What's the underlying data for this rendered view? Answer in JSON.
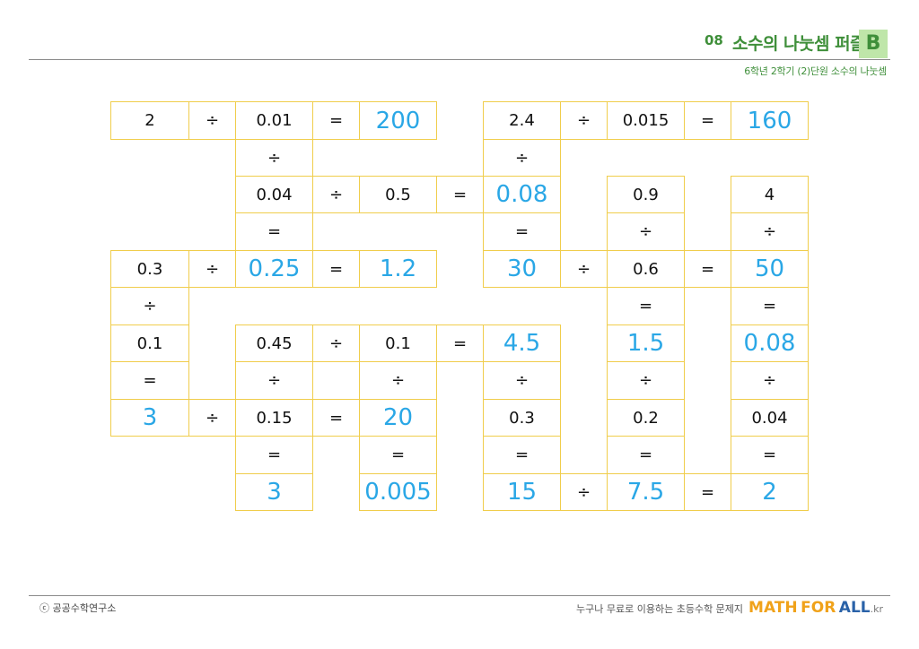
{
  "header": {
    "number": "08",
    "title": "소수의 나눗셈 퍼즐",
    "badge": "B",
    "subtitle": "6학년 2학기 (2)단원 소수의 나눗셈"
  },
  "puzzle": {
    "rows": [
      [
        {
          "t": "g",
          "v": "2"
        },
        {
          "t": "o",
          "v": "÷"
        },
        {
          "t": "g",
          "v": "0.01"
        },
        {
          "t": "o",
          "v": "="
        },
        {
          "t": "a",
          "v": "200"
        },
        null,
        {
          "t": "g",
          "v": "2.4"
        },
        {
          "t": "o",
          "v": "÷"
        },
        {
          "t": "g",
          "v": "0.015"
        },
        {
          "t": "o",
          "v": "="
        },
        {
          "t": "a",
          "v": "160"
        }
      ],
      [
        null,
        null,
        {
          "t": "o",
          "v": "÷"
        },
        null,
        null,
        null,
        {
          "t": "o",
          "v": "÷"
        },
        null,
        null,
        null,
        null
      ],
      [
        null,
        null,
        {
          "t": "g",
          "v": "0.04"
        },
        {
          "t": "o",
          "v": "÷"
        },
        {
          "t": "g",
          "v": "0.5"
        },
        {
          "t": "o",
          "v": "="
        },
        {
          "t": "a",
          "v": "0.08"
        },
        null,
        {
          "t": "g",
          "v": "0.9"
        },
        null,
        {
          "t": "g",
          "v": "4"
        }
      ],
      [
        null,
        null,
        {
          "t": "o",
          "v": "="
        },
        null,
        null,
        null,
        {
          "t": "o",
          "v": "="
        },
        null,
        {
          "t": "o",
          "v": "÷"
        },
        null,
        {
          "t": "o",
          "v": "÷"
        }
      ],
      [
        {
          "t": "g",
          "v": "0.3"
        },
        {
          "t": "o",
          "v": "÷"
        },
        {
          "t": "a",
          "v": "0.25"
        },
        {
          "t": "o",
          "v": "="
        },
        {
          "t": "a",
          "v": "1.2"
        },
        null,
        {
          "t": "a",
          "v": "30"
        },
        {
          "t": "o",
          "v": "÷"
        },
        {
          "t": "g",
          "v": "0.6"
        },
        {
          "t": "o",
          "v": "="
        },
        {
          "t": "a",
          "v": "50"
        }
      ],
      [
        {
          "t": "o",
          "v": "÷"
        },
        null,
        null,
        null,
        null,
        null,
        null,
        null,
        {
          "t": "o",
          "v": "="
        },
        null,
        {
          "t": "o",
          "v": "="
        }
      ],
      [
        {
          "t": "g",
          "v": "0.1"
        },
        null,
        {
          "t": "g",
          "v": "0.45"
        },
        {
          "t": "o",
          "v": "÷"
        },
        {
          "t": "g",
          "v": "0.1"
        },
        {
          "t": "o",
          "v": "="
        },
        {
          "t": "a",
          "v": "4.5"
        },
        null,
        {
          "t": "a",
          "v": "1.5"
        },
        null,
        {
          "t": "a",
          "v": "0.08"
        }
      ],
      [
        {
          "t": "o",
          "v": "="
        },
        null,
        {
          "t": "o",
          "v": "÷"
        },
        null,
        {
          "t": "o",
          "v": "÷"
        },
        null,
        {
          "t": "o",
          "v": "÷"
        },
        null,
        {
          "t": "o",
          "v": "÷"
        },
        null,
        {
          "t": "o",
          "v": "÷"
        }
      ],
      [
        {
          "t": "a",
          "v": "3"
        },
        {
          "t": "o",
          "v": "÷"
        },
        {
          "t": "g",
          "v": "0.15"
        },
        {
          "t": "o",
          "v": "="
        },
        {
          "t": "a",
          "v": "20"
        },
        null,
        {
          "t": "g",
          "v": "0.3"
        },
        null,
        {
          "t": "g",
          "v": "0.2"
        },
        null,
        {
          "t": "g",
          "v": "0.04"
        }
      ],
      [
        null,
        null,
        {
          "t": "o",
          "v": "="
        },
        null,
        {
          "t": "o",
          "v": "="
        },
        null,
        {
          "t": "o",
          "v": "="
        },
        null,
        {
          "t": "o",
          "v": "="
        },
        null,
        {
          "t": "o",
          "v": "="
        }
      ],
      [
        null,
        null,
        {
          "t": "a",
          "v": "3"
        },
        null,
        {
          "t": "a",
          "v": "0.005"
        },
        null,
        {
          "t": "a",
          "v": "15"
        },
        {
          "t": "o",
          "v": "÷"
        },
        {
          "t": "a",
          "v": "7.5"
        },
        {
          "t": "o",
          "v": "="
        },
        {
          "t": "a",
          "v": "2"
        }
      ]
    ]
  },
  "footer": {
    "copyright": "ⓒ 공공수학연구소",
    "tagline": "누구나 무료로 이용하는 초등수학 문제지",
    "brand_math": "MATH",
    "brand_for": "FOR",
    "brand_all": "ALL",
    "brand_tld": ".kr"
  }
}
